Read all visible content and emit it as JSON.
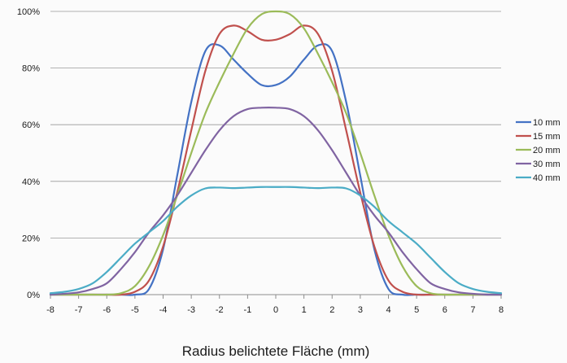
{
  "chart_data": {
    "type": "line",
    "title": "",
    "xlabel": "Radius belichtete Fläche (mm)",
    "ylabel": "",
    "xlim": [
      -8,
      8
    ],
    "ylim": [
      0,
      100
    ],
    "x_ticks": [
      "-8",
      "-7",
      "-6",
      "-5",
      "-4",
      "-3",
      "-2",
      "-1",
      "0",
      "1",
      "2",
      "3",
      "4",
      "5",
      "6",
      "7",
      "8"
    ],
    "y_ticks": [
      "0%",
      "20%",
      "40%",
      "60%",
      "80%",
      "100%"
    ],
    "grid": "horizontal",
    "legend_position": "right",
    "x": [
      -8,
      -7.5,
      -7,
      -6.5,
      -6,
      -5.5,
      -5,
      -4.5,
      -4,
      -3.5,
      -3,
      -2.5,
      -2,
      -1.5,
      -1,
      -0.5,
      0,
      0.5,
      1,
      1.5,
      2,
      2.5,
      3,
      3.5,
      4,
      4.5,
      5,
      5.5,
      6,
      6.5,
      7,
      7.5,
      8
    ],
    "series": [
      {
        "name": "10 mm",
        "color": "#4472c4",
        "values": [
          0,
          0,
          0,
          0,
          0,
          0,
          0,
          2,
          16,
          42,
          68,
          86,
          88,
          83,
          78,
          74,
          74,
          77,
          83,
          88,
          86,
          68,
          42,
          16,
          2,
          0,
          0,
          0,
          0,
          0,
          0,
          0,
          0
        ]
      },
      {
        "name": "15 mm",
        "color": "#c0504d",
        "values": [
          0,
          0,
          0,
          0,
          0,
          0,
          1,
          5,
          17,
          36,
          58,
          79,
          92,
          95,
          93,
          90,
          90,
          92,
          95,
          92,
          79,
          58,
          36,
          17,
          5,
          1,
          0,
          0,
          0,
          0,
          0,
          0,
          0
        ]
      },
      {
        "name": "20 mm",
        "color": "#9bbb59",
        "values": [
          0,
          0,
          0,
          0,
          0,
          0.5,
          3,
          10,
          21,
          35,
          50,
          64,
          75,
          85,
          94,
          99,
          100,
          99,
          94,
          85,
          75,
          64,
          50,
          35,
          21,
          10,
          3,
          0.5,
          0,
          0,
          0,
          0,
          0
        ]
      },
      {
        "name": "30 mm",
        "color": "#8064a2",
        "values": [
          0,
          0.3,
          0.8,
          2,
          4,
          9,
          15,
          22,
          28,
          35,
          43,
          51,
          58,
          63,
          65.5,
          66,
          66,
          65.5,
          63,
          58,
          51,
          43,
          35,
          28,
          22,
          15,
          9,
          4,
          2,
          0.8,
          0.3,
          0,
          0
        ]
      },
      {
        "name": "40 mm",
        "color": "#4bacc6",
        "values": [
          0.5,
          1,
          2,
          4,
          8,
          13,
          18,
          22,
          26,
          31,
          35,
          37.5,
          37.8,
          37.6,
          37.8,
          38,
          38,
          38,
          37.8,
          37.6,
          37.8,
          37.5,
          35,
          31,
          26,
          22,
          18,
          13,
          8,
          4,
          2,
          1,
          0.5
        ]
      }
    ]
  }
}
